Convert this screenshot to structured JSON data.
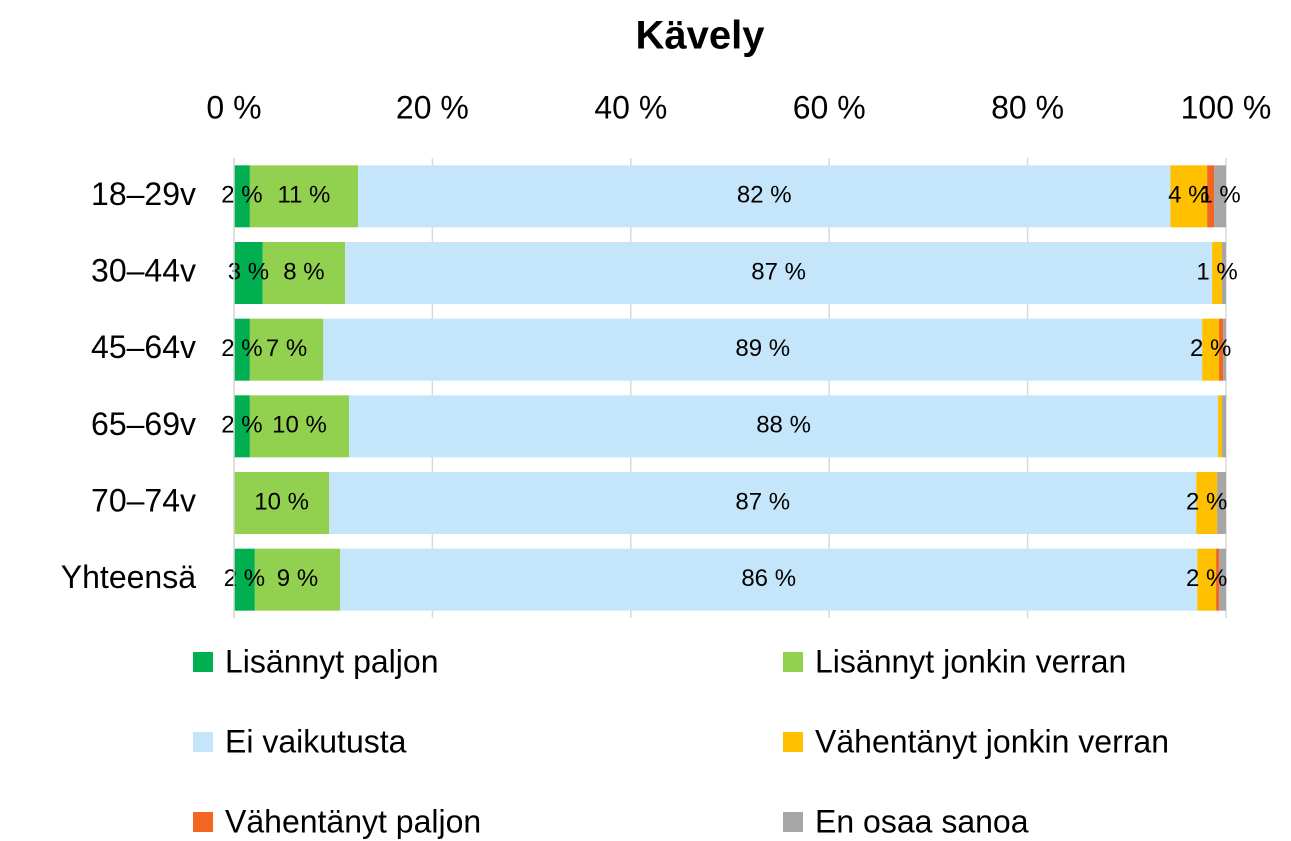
{
  "chart_data": {
    "type": "stacked_barh",
    "title": "Kävely",
    "categories": [
      "18–29v",
      "30–44v",
      "45–64v",
      "65–69v",
      "70–74v",
      "Yhteensä"
    ],
    "series": [
      {
        "name": "Lisännyt paljon",
        "color": "#00b050",
        "values": [
          1.6,
          2.9,
          1.6,
          1.6,
          0,
          2.1
        ],
        "value_labels": [
          "2 %",
          "3 %",
          "2 %",
          "2 %",
          null,
          "2 %"
        ]
      },
      {
        "name": "Lisännyt jonkin verran",
        "color": "#92d050",
        "values": [
          10.9,
          8.3,
          7.4,
          10.0,
          9.6,
          8.6
        ],
        "value_labels": [
          "11 %",
          "8 %",
          "7 %",
          "10 %",
          "10 %",
          "9 %"
        ]
      },
      {
        "name": "Ei vaikutusta",
        "color": "#c5e6fa",
        "values": [
          81.9,
          87.4,
          88.6,
          87.6,
          87.4,
          86.4
        ],
        "value_labels": [
          "82 %",
          "87 %",
          "89 %",
          "88 %",
          "87 %",
          "86 %"
        ]
      },
      {
        "name": "Vähentänyt jonkin verran",
        "color": "#ffc000",
        "values": [
          3.7,
          1.0,
          1.7,
          0.4,
          2.1,
          1.9
        ],
        "value_labels": [
          "4 %",
          "1 %",
          "2 %",
          null,
          "2 %",
          "2 %"
        ]
      },
      {
        "name": "Vähentänyt paljon",
        "color": "#f26522",
        "values": [
          0.7,
          0,
          0.4,
          0,
          0,
          0.3
        ],
        "value_labels": [
          null,
          null,
          null,
          null,
          null,
          null
        ]
      },
      {
        "name": "En osaa sanoa",
        "color": "#a6a6a6",
        "values": [
          1.2,
          0.4,
          0.3,
          0.4,
          0.9,
          0.7
        ],
        "value_labels": [
          "1 %",
          null,
          null,
          null,
          null,
          null
        ]
      }
    ],
    "xlim": [
      0,
      100
    ],
    "xticks": [
      {
        "value": 0,
        "label": "0 %"
      },
      {
        "value": 20,
        "label": "20 %"
      },
      {
        "value": 40,
        "label": "40 %"
      },
      {
        "value": 60,
        "label": "60 %"
      },
      {
        "value": 80,
        "label": "80 %"
      },
      {
        "value": 100,
        "label": "100 %"
      }
    ],
    "grid": true,
    "legend": "bottom"
  }
}
